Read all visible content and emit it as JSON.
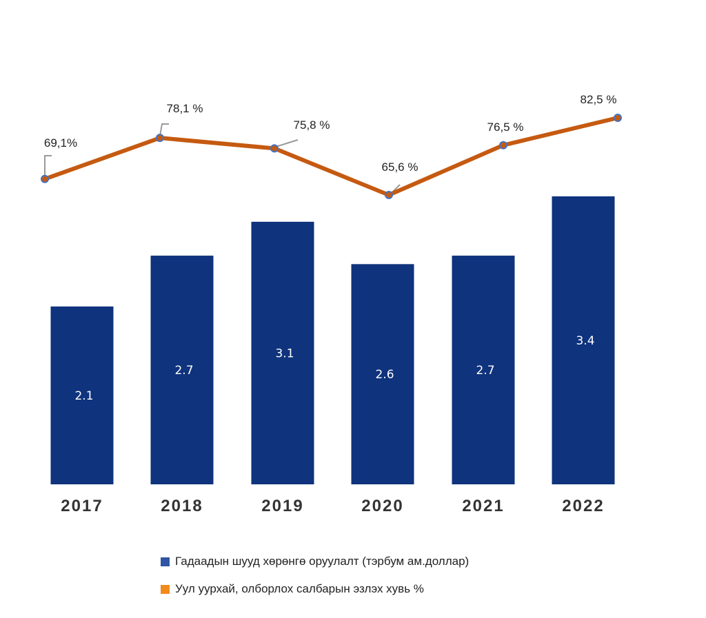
{
  "chart_data": {
    "type": "bar+line",
    "title": "",
    "categories": [
      "2017",
      "2018",
      "2019",
      "2020",
      "2021",
      "2022"
    ],
    "series": [
      {
        "name": "Гадаадын шууд хөрөнгө оруулалт (тэрбум ам.доллар)",
        "type": "bar",
        "color": "#0f337d",
        "values": [
          2.1,
          2.7,
          3.1,
          2.6,
          2.7,
          3.4
        ],
        "labels": [
          "2.1",
          "2.7",
          "3.1",
          "2.6",
          "2.7",
          "3.4"
        ]
      },
      {
        "name": "Уул уурхай, олборлох салбарын эзлэх хувь %",
        "type": "line",
        "color": "#c55a11",
        "marker_color": "#4472c4",
        "values": [
          69.1,
          78.1,
          75.8,
          65.6,
          76.5,
          82.5
        ],
        "labels": [
          "69,1%",
          "78,1 %",
          "75,8 %",
          "65,6 %",
          "76,5 %",
          "82,5 %"
        ]
      }
    ],
    "bar_axis_range": [
      0,
      3.4
    ],
    "line_axis_range": [
      65.6,
      82.5
    ],
    "grid": false,
    "legend_position": "bottom",
    "legend": [
      {
        "label": "Гадаадын шууд хөрөнгө оруулалт (тэрбум ам.доллар)",
        "color": "#2f55a4"
      },
      {
        "label": "Уул уурхай, олборлох салбарын эзлэх хувь %",
        "color": "#f28a1e"
      }
    ]
  }
}
